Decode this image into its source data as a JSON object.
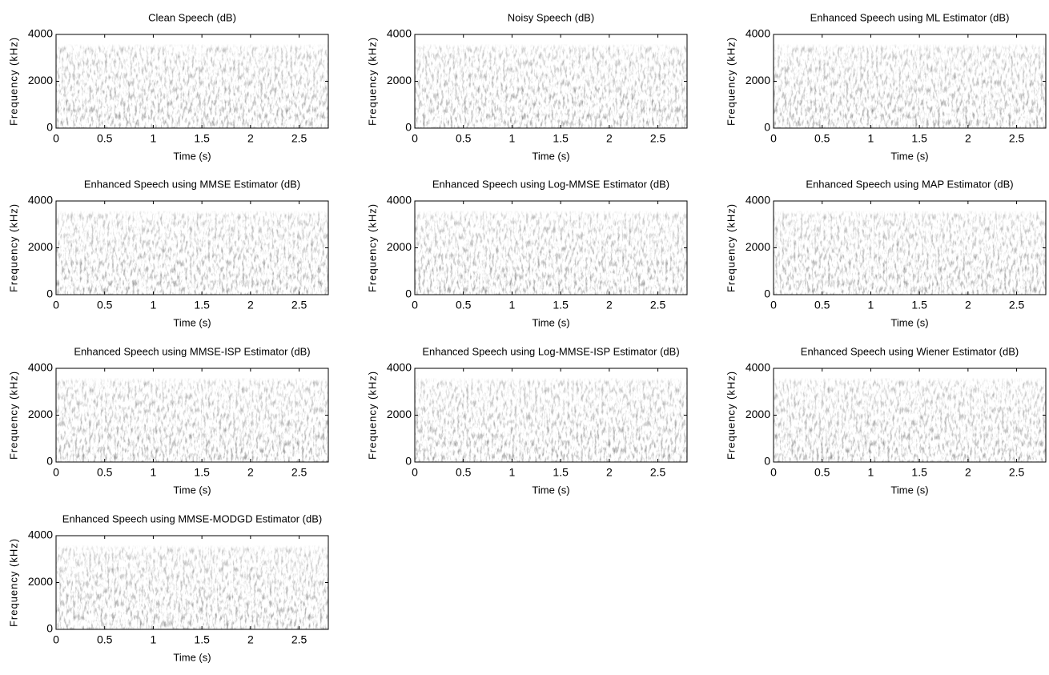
{
  "chart_data": [
    {
      "type": "spectrogram",
      "title": "Clean Speech (dB)",
      "xlabel": "Time (s)",
      "ylabel": "Frequency (kHz)",
      "xlim": [
        0,
        2.8
      ],
      "ylim": [
        0,
        4000
      ],
      "xticks": [
        0,
        0.5,
        1,
        1.5,
        2,
        2.5
      ],
      "yticks": [
        0,
        2000,
        4000
      ]
    },
    {
      "type": "spectrogram",
      "title": "Noisy Speech (dB)",
      "xlabel": "Time (s)",
      "ylabel": "Frequency (kHz)",
      "xlim": [
        0,
        2.8
      ],
      "ylim": [
        0,
        4000
      ],
      "xticks": [
        0,
        0.5,
        1,
        1.5,
        2,
        2.5
      ],
      "yticks": [
        0,
        2000,
        4000
      ]
    },
    {
      "type": "spectrogram",
      "title": "Enhanced Speech using ML Estimator (dB)",
      "xlabel": "Time (s)",
      "ylabel": "Frequency (kHz)",
      "xlim": [
        0,
        2.8
      ],
      "ylim": [
        0,
        4000
      ],
      "xticks": [
        0,
        0.5,
        1,
        1.5,
        2,
        2.5
      ],
      "yticks": [
        0,
        2000,
        4000
      ]
    },
    {
      "type": "spectrogram",
      "title": "Enhanced Speech using MMSE Estimator (dB)",
      "xlabel": "Time (s)",
      "ylabel": "Frequency (kHz)",
      "xlim": [
        0,
        2.8
      ],
      "ylim": [
        0,
        4000
      ],
      "xticks": [
        0,
        0.5,
        1,
        1.5,
        2,
        2.5
      ],
      "yticks": [
        0,
        2000,
        4000
      ]
    },
    {
      "type": "spectrogram",
      "title": "Enhanced Speech using Log-MMSE Estimator (dB)",
      "xlabel": "Time (s)",
      "ylabel": "Frequency (kHz)",
      "xlim": [
        0,
        2.8
      ],
      "ylim": [
        0,
        4000
      ],
      "xticks": [
        0,
        0.5,
        1,
        1.5,
        2,
        2.5
      ],
      "yticks": [
        0,
        2000,
        4000
      ]
    },
    {
      "type": "spectrogram",
      "title": "Enhanced Speech using MAP Estimator (dB)",
      "xlabel": "Time (s)",
      "ylabel": "Frequency (kHz)",
      "xlim": [
        0,
        2.8
      ],
      "ylim": [
        0,
        4000
      ],
      "xticks": [
        0,
        0.5,
        1,
        1.5,
        2,
        2.5
      ],
      "yticks": [
        0,
        2000,
        4000
      ]
    },
    {
      "type": "spectrogram",
      "title": "Enhanced Speech using MMSE-ISP Estimator (dB)",
      "xlabel": "Time (s)",
      "ylabel": "Frequency (kHz)",
      "xlim": [
        0,
        2.8
      ],
      "ylim": [
        0,
        4000
      ],
      "xticks": [
        0,
        0.5,
        1,
        1.5,
        2,
        2.5
      ],
      "yticks": [
        0,
        2000,
        4000
      ]
    },
    {
      "type": "spectrogram",
      "title": "Enhanced Speech using Log-MMSE-ISP Estimator (dB)",
      "xlabel": "Time (s)",
      "ylabel": "Frequency (kHz)",
      "xlim": [
        0,
        2.8
      ],
      "ylim": [
        0,
        4000
      ],
      "xticks": [
        0,
        0.5,
        1,
        1.5,
        2,
        2.5
      ],
      "yticks": [
        0,
        2000,
        4000
      ]
    },
    {
      "type": "spectrogram",
      "title": "Enhanced Speech using Wiener Estimator (dB)",
      "xlabel": "Time (s)",
      "ylabel": "Frequency (kHz)",
      "xlim": [
        0,
        2.8
      ],
      "ylim": [
        0,
        4000
      ],
      "xticks": [
        0,
        0.5,
        1,
        1.5,
        2,
        2.5
      ],
      "yticks": [
        0,
        2000,
        4000
      ]
    },
    {
      "type": "spectrogram",
      "title": "Enhanced Speech using MMSE-MODGD Estimator (dB)",
      "xlabel": "Time (s)",
      "ylabel": "Frequency (kHz)",
      "xlim": [
        0,
        2.8
      ],
      "ylim": [
        0,
        4000
      ],
      "xticks": [
        0,
        0.5,
        1,
        1.5,
        2,
        2.5
      ],
      "yticks": [
        0,
        2000,
        4000
      ]
    }
  ]
}
